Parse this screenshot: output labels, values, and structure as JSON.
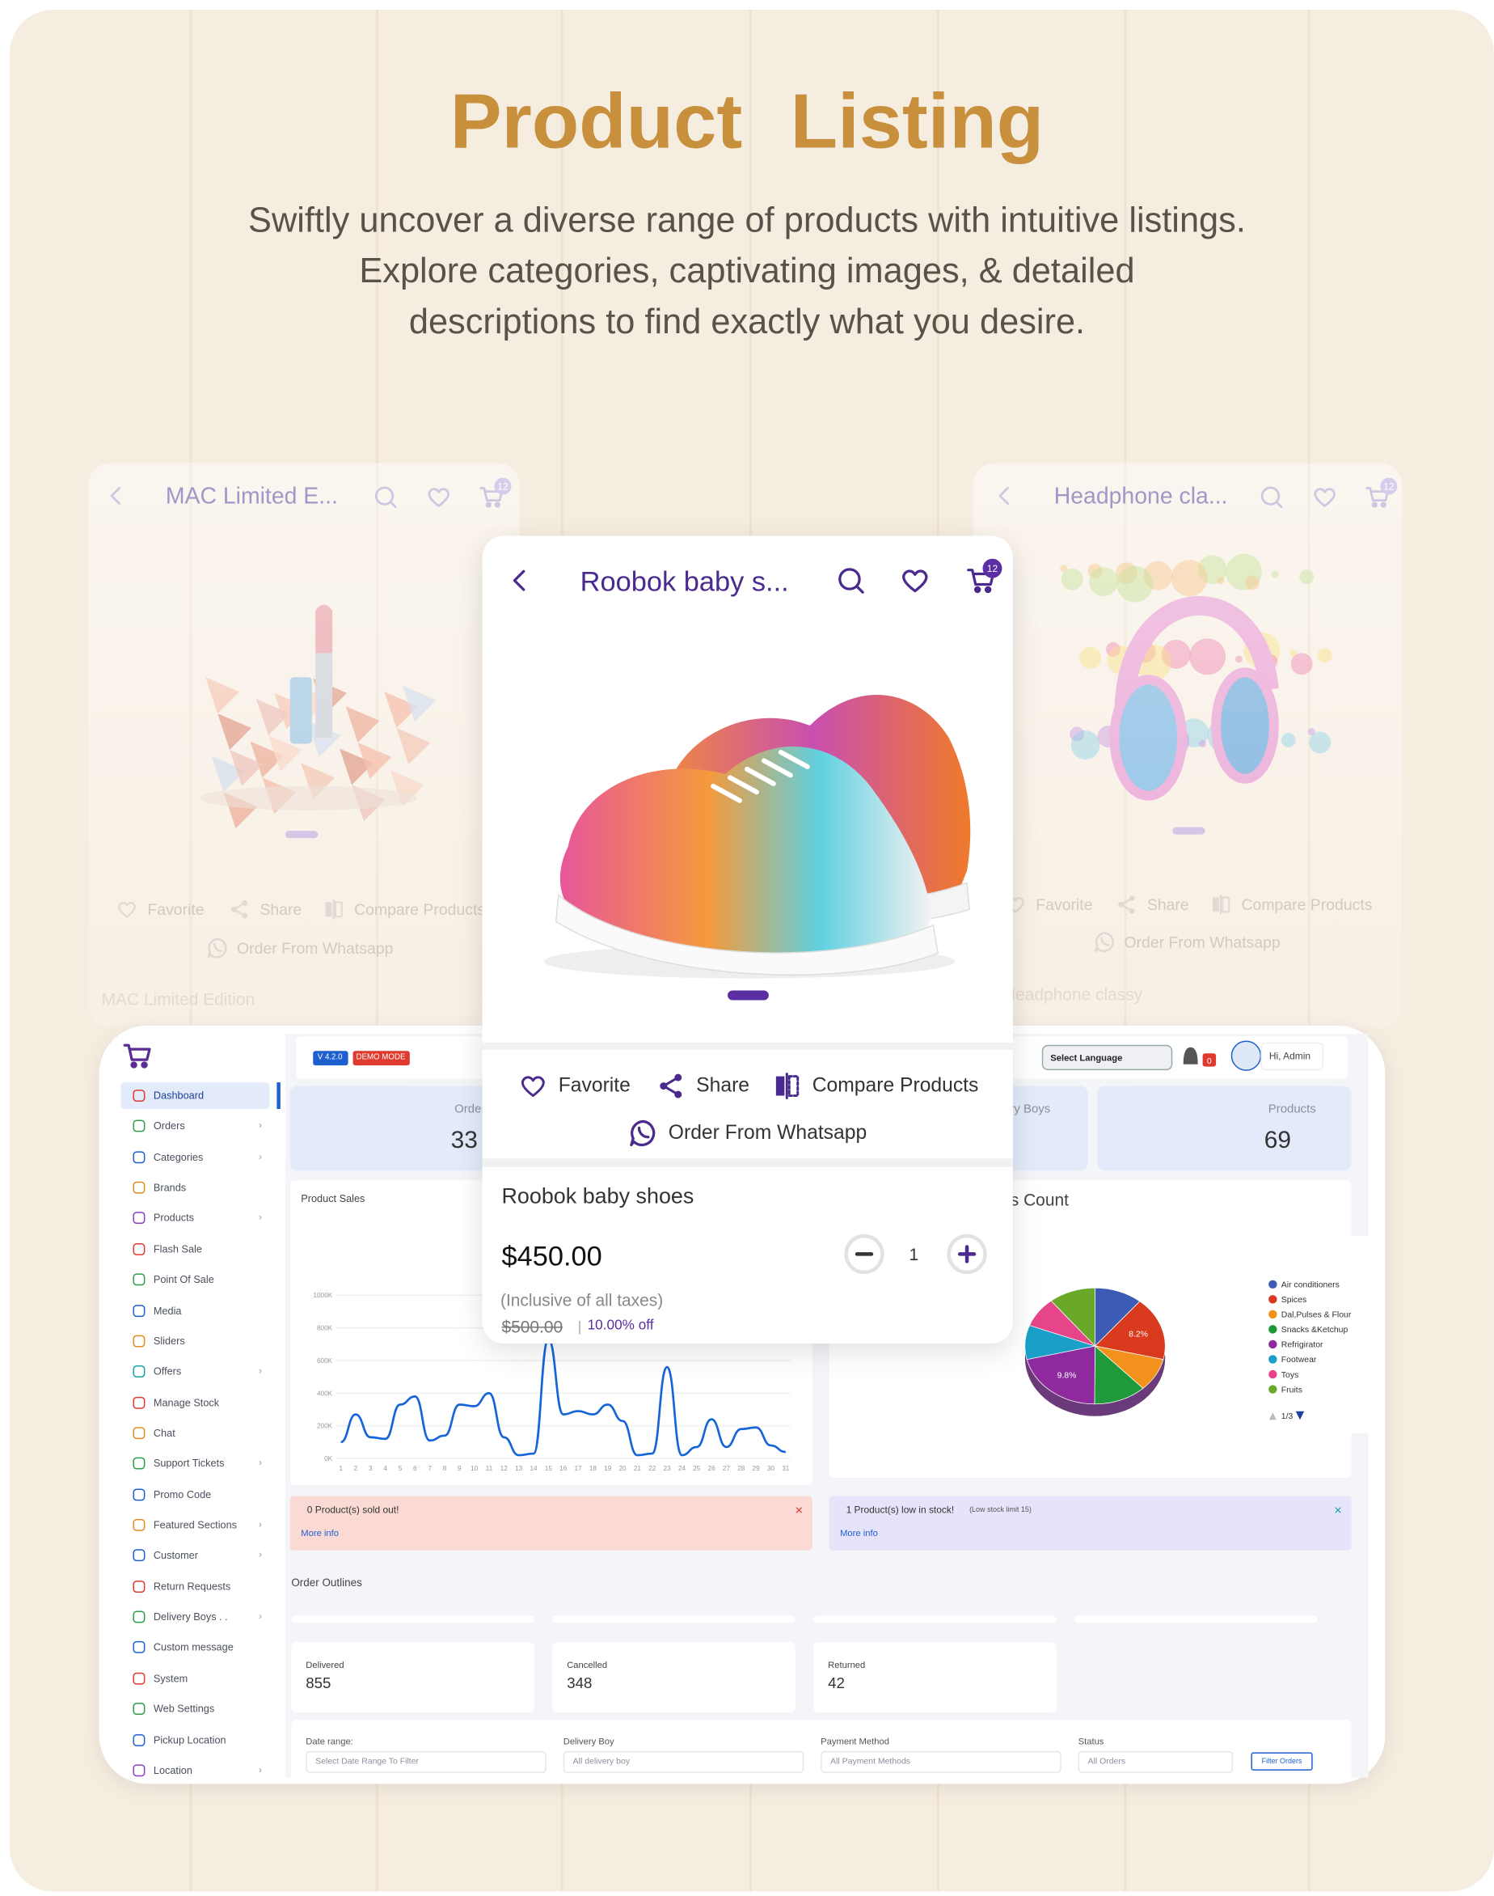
{
  "header": {
    "title": "Product Listing",
    "subtitle": [
      "Swiftly uncover a diverse range of products with intuitive listings.",
      "Explore categories, captivating images, & detailed",
      "descriptions to find exactly what you desire."
    ]
  },
  "side_cards": [
    {
      "title": "MAC Limited E...",
      "cart_count": 12,
      "actions": [
        "Favorite",
        "Share",
        "Compare Products"
      ],
      "order_whatsapp": "Order From Whatsapp",
      "product_name": "MAC Limited Edition"
    },
    {
      "title": "Headphone cla...",
      "cart_count": 12,
      "actions": [
        "Favorite",
        "Share",
        "Compare Products"
      ],
      "order_whatsapp": "Order From Whatsapp",
      "product_name": "Headphone classy"
    }
  ],
  "main_card": {
    "title": "Roobok baby s...",
    "cart_count": 12,
    "actions": [
      "Favorite",
      "Share",
      "Compare Products"
    ],
    "order_whatsapp": "Order From Whatsapp",
    "product_name": "Roobok baby shoes",
    "price": "$450.00",
    "quantity": 1,
    "tax_note": "(Inclusive of all taxes)",
    "old_price": "$500.00",
    "discount": "10.00% off"
  },
  "dashboard": {
    "version": "V 4.2.0",
    "mode": "DEMO MODE",
    "language": "Select Language",
    "notifications": 0,
    "user": "Hi, Admin",
    "sidebar": [
      {
        "label": "Dashboard",
        "color": "#e0392f",
        "active": true
      },
      {
        "label": "Orders",
        "color": "#2e9d4a",
        "submenu": true
      },
      {
        "label": "Categories",
        "color": "#1e5fd0",
        "submenu": true
      },
      {
        "label": "Brands",
        "color": "#e58a1f"
      },
      {
        "label": "Products",
        "color": "#8a3fc7",
        "submenu": true
      },
      {
        "label": "Flash Sale",
        "color": "#e0392f"
      },
      {
        "label": "Point Of Sale",
        "color": "#2e9d4a"
      },
      {
        "label": "Media",
        "color": "#1e5fd0"
      },
      {
        "label": "Sliders",
        "color": "#e58a1f"
      },
      {
        "label": "Offers",
        "color": "#18a0a8",
        "submenu": true
      },
      {
        "label": "Manage Stock",
        "color": "#e0392f"
      },
      {
        "label": "Chat",
        "color": "#e58a1f"
      },
      {
        "label": "Support Tickets",
        "color": "#2e9d4a",
        "submenu": true
      },
      {
        "label": "Promo Code",
        "color": "#1e5fd0"
      },
      {
        "label": "Featured Sections",
        "color": "#e58a1f",
        "submenu": true
      },
      {
        "label": "Customer",
        "color": "#1e5fd0",
        "submenu": true
      },
      {
        "label": "Return Requests",
        "color": "#e0392f"
      },
      {
        "label": "Delivery Boys . .",
        "color": "#2e9d4a",
        "submenu": true
      },
      {
        "label": "Custom message",
        "color": "#1e5fd0"
      },
      {
        "label": "System",
        "color": "#e0392f"
      },
      {
        "label": "Web Settings",
        "color": "#2e9d4a"
      },
      {
        "label": "Pickup Location",
        "color": "#1e5fd0"
      },
      {
        "label": "Location",
        "color": "#8a3fc7",
        "submenu": true
      }
    ],
    "stats": [
      {
        "label": "Orders",
        "value": 33
      },
      {
        "label": "Delivery Boys"
      },
      {
        "label": "Products",
        "value": 69
      }
    ],
    "sales_chart": {
      "type": "line",
      "title": "Product Sales",
      "x": [
        1,
        2,
        3,
        4,
        5,
        6,
        7,
        8,
        9,
        10,
        11,
        12,
        13,
        14,
        15,
        16,
        17,
        18,
        19,
        20,
        21,
        22,
        23,
        24,
        25,
        26,
        27,
        28,
        29,
        30,
        31
      ],
      "xlim": [
        1,
        31
      ],
      "values": [
        100000,
        270000,
        130000,
        120000,
        330000,
        380000,
        110000,
        140000,
        330000,
        320000,
        400000,
        130000,
        20000,
        30000,
        730000,
        270000,
        290000,
        270000,
        330000,
        230000,
        20000,
        30000,
        560000,
        20000,
        70000,
        240000,
        70000,
        180000,
        190000,
        80000,
        40000
      ],
      "ylim": [
        0,
        1000000
      ],
      "yticks": [
        {
          "value": 0,
          "label": "0K"
        },
        {
          "value": 200000,
          "label": "200K"
        },
        {
          "value": 400000,
          "label": "400K"
        },
        {
          "value": 600000,
          "label": "600K"
        },
        {
          "value": 800000,
          "label": "800K"
        },
        {
          "value": 1000000,
          "label": "1000K"
        }
      ],
      "color": "#1565d8",
      "grid": true
    },
    "count_chart": {
      "type": "pie",
      "title": "Product's Count",
      "categories": [
        "Air conditioners",
        "Spices",
        "Dal,Pulses & Flour",
        "Snacks &Ketchup",
        "Refrigirator",
        "Footwear",
        "Toys",
        "Fruits"
      ],
      "colors": [
        "#3b5bb5",
        "#d93a1e",
        "#f2921d",
        "#1e9a3a",
        "#8e2a9e",
        "#1aa0c8",
        "#e6458a",
        "#6aa82a"
      ],
      "values": [
        5.1,
        8.2,
        4.3,
        5.6,
        9.8,
        4.4,
        3.9,
        5.0
      ],
      "value_labels": [
        null,
        "8.2%",
        null,
        null,
        "9.8%",
        null,
        null,
        null
      ],
      "page": "1/3"
    },
    "alerts": [
      {
        "text": "0 Product(s) sold out!",
        "link": "More info"
      },
      {
        "text": "1 Product(s) low in stock!",
        "note": "(Low stock limit 15)",
        "link": "More info"
      }
    ],
    "order_outlines": {
      "title": "Order Outlines",
      "cards": [
        {
          "label": "Delivered",
          "value": 855
        },
        {
          "label": "Cancelled",
          "value": 348
        },
        {
          "label": "Returned",
          "value": 42
        }
      ]
    },
    "filters": [
      {
        "label": "Date range:",
        "placeholder": "Select Date Range To Filter"
      },
      {
        "label": "Delivery Boy",
        "placeholder": "All delivery boy"
      },
      {
        "label": "Payment Method",
        "placeholder": "All Payment Methods"
      },
      {
        "label": "Status",
        "placeholder": "All Orders"
      }
    ],
    "filter_button": "Filter Orders"
  }
}
